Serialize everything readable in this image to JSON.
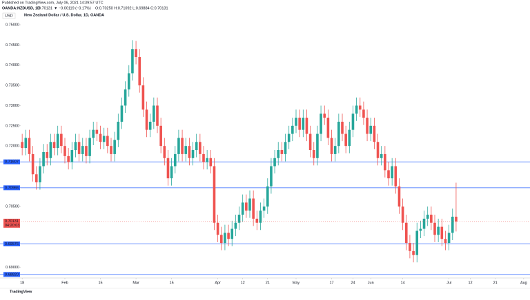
{
  "header": {
    "published": "Published on TradingView.com, July 06, 2021 14:39:57 UTC",
    "symbol": "OANDA:NZDUSD, 1D",
    "last": "0.70131",
    "change": "▼ −0.00119 (−0.17%)",
    "ohlc": "O:0.70250 H:0.71092 L:0.69884 C:0.70131",
    "currency": "USD",
    "footer": "TradingView"
  },
  "chart_data": {
    "type": "candlestick",
    "title": "New Zealand Dollar / U.S. Dollar, 1D, OANDA",
    "up_color": "#26a69a",
    "down_color": "#ef5350",
    "candles": [
      [
        0.721,
        0.723,
        0.7177,
        0.7195
      ],
      [
        0.7195,
        0.724,
        0.7177,
        0.722
      ],
      [
        0.722,
        0.724,
        0.7162,
        0.718
      ],
      [
        0.718,
        0.72,
        0.7112,
        0.713
      ],
      [
        0.713,
        0.715,
        0.7092,
        0.711
      ],
      [
        0.711,
        0.717,
        0.7092,
        0.715
      ],
      [
        0.715,
        0.7205,
        0.7132,
        0.7185
      ],
      [
        0.7185,
        0.7205,
        0.7152,
        0.717
      ],
      [
        0.717,
        0.723,
        0.7152,
        0.721
      ],
      [
        0.721,
        0.723,
        0.7177,
        0.7195
      ],
      [
        0.7195,
        0.725,
        0.7177,
        0.723
      ],
      [
        0.723,
        0.725,
        0.7182,
        0.72
      ],
      [
        0.72,
        0.722,
        0.7157,
        0.7175
      ],
      [
        0.7175,
        0.7195,
        0.7142,
        0.716
      ],
      [
        0.716,
        0.721,
        0.7142,
        0.719
      ],
      [
        0.719,
        0.723,
        0.7172,
        0.721
      ],
      [
        0.721,
        0.723,
        0.7162,
        0.718
      ],
      [
        0.718,
        0.722,
        0.7162,
        0.72
      ],
      [
        0.72,
        0.722,
        0.7157,
        0.7175
      ],
      [
        0.7175,
        0.724,
        0.7157,
        0.722
      ],
      [
        0.722,
        0.726,
        0.7202,
        0.724
      ],
      [
        0.724,
        0.726,
        0.7212,
        0.723
      ],
      [
        0.723,
        0.725,
        0.7192,
        0.721
      ],
      [
        0.721,
        0.7245,
        0.7192,
        0.7225
      ],
      [
        0.7225,
        0.7245,
        0.7182,
        0.72
      ],
      [
        0.72,
        0.722,
        0.7162,
        0.718
      ],
      [
        0.718,
        0.7235,
        0.7162,
        0.7215
      ],
      [
        0.7215,
        0.728,
        0.7197,
        0.726
      ],
      [
        0.726,
        0.732,
        0.7242,
        0.73
      ],
      [
        0.73,
        0.736,
        0.7282,
        0.734
      ],
      [
        0.734,
        0.74,
        0.7322,
        0.738
      ],
      [
        0.738,
        0.7462,
        0.7362,
        0.744
      ],
      [
        0.744,
        0.746,
        0.7402,
        0.742
      ],
      [
        0.742,
        0.744,
        0.7332,
        0.735
      ],
      [
        0.735,
        0.737,
        0.7272,
        0.729
      ],
      [
        0.729,
        0.731,
        0.7222,
        0.724
      ],
      [
        0.724,
        0.728,
        0.7222,
        0.726
      ],
      [
        0.726,
        0.732,
        0.7242,
        0.73
      ],
      [
        0.73,
        0.732,
        0.7232,
        0.725
      ],
      [
        0.725,
        0.727,
        0.7182,
        0.72
      ],
      [
        0.72,
        0.722,
        0.7152,
        0.717
      ],
      [
        0.717,
        0.719,
        0.7102,
        0.712
      ],
      [
        0.712,
        0.717,
        0.7102,
        0.715
      ],
      [
        0.715,
        0.72,
        0.7132,
        0.718
      ],
      [
        0.718,
        0.724,
        0.7162,
        0.722
      ],
      [
        0.722,
        0.724,
        0.7162,
        0.718
      ],
      [
        0.718,
        0.722,
        0.7162,
        0.72
      ],
      [
        0.72,
        0.722,
        0.7152,
        0.717
      ],
      [
        0.717,
        0.721,
        0.7152,
        0.719
      ],
      [
        0.719,
        0.723,
        0.7172,
        0.721
      ],
      [
        0.721,
        0.723,
        0.7162,
        0.718
      ],
      [
        0.718,
        0.72,
        0.7142,
        0.716
      ],
      [
        0.716,
        0.719,
        0.7142,
        0.717
      ],
      [
        0.717,
        0.719,
        0.7132,
        0.715
      ],
      [
        0.715,
        0.717,
        0.6992,
        0.701
      ],
      [
        0.701,
        0.703,
        0.6962,
        0.698
      ],
      [
        0.698,
        0.7,
        0.6942,
        0.696
      ],
      [
        0.696,
        0.7005,
        0.6942,
        0.6985
      ],
      [
        0.6985,
        0.7005,
        0.6952,
        0.697
      ],
      [
        0.697,
        0.7015,
        0.6952,
        0.6995
      ],
      [
        0.6995,
        0.703,
        0.6977,
        0.701
      ],
      [
        0.701,
        0.705,
        0.6992,
        0.703
      ],
      [
        0.703,
        0.708,
        0.7012,
        0.706
      ],
      [
        0.706,
        0.708,
        0.7022,
        0.704
      ],
      [
        0.704,
        0.709,
        0.7022,
        0.707
      ],
      [
        0.707,
        0.709,
        0.7002,
        0.702
      ],
      [
        0.702,
        0.704,
        0.6992,
        0.701
      ],
      [
        0.701,
        0.706,
        0.6992,
        0.704
      ],
      [
        0.704,
        0.707,
        0.7022,
        0.705
      ],
      [
        0.705,
        0.712,
        0.7032,
        0.71
      ],
      [
        0.71,
        0.717,
        0.7082,
        0.715
      ],
      [
        0.715,
        0.719,
        0.7132,
        0.717
      ],
      [
        0.717,
        0.721,
        0.7152,
        0.719
      ],
      [
        0.719,
        0.721,
        0.7162,
        0.718
      ],
      [
        0.718,
        0.723,
        0.7162,
        0.721
      ],
      [
        0.721,
        0.725,
        0.7192,
        0.723
      ],
      [
        0.723,
        0.727,
        0.7212,
        0.725
      ],
      [
        0.725,
        0.729,
        0.7232,
        0.727
      ],
      [
        0.727,
        0.729,
        0.7222,
        0.724
      ],
      [
        0.724,
        0.729,
        0.7222,
        0.727
      ],
      [
        0.727,
        0.729,
        0.7212,
        0.723
      ],
      [
        0.723,
        0.725,
        0.7172,
        0.719
      ],
      [
        0.719,
        0.721,
        0.7152,
        0.717
      ],
      [
        0.717,
        0.725,
        0.7152,
        0.723
      ],
      [
        0.723,
        0.73,
        0.7212,
        0.728
      ],
      [
        0.728,
        0.73,
        0.7252,
        0.727
      ],
      [
        0.727,
        0.729,
        0.7202,
        0.722
      ],
      [
        0.722,
        0.724,
        0.7162,
        0.718
      ],
      [
        0.718,
        0.722,
        0.7162,
        0.72
      ],
      [
        0.72,
        0.728,
        0.7182,
        0.726
      ],
      [
        0.726,
        0.728,
        0.7212,
        0.723
      ],
      [
        0.723,
        0.725,
        0.7182,
        0.72
      ],
      [
        0.72,
        0.726,
        0.7182,
        0.724
      ],
      [
        0.724,
        0.73,
        0.7222,
        0.728
      ],
      [
        0.728,
        0.732,
        0.7262,
        0.73
      ],
      [
        0.73,
        0.732,
        0.7272,
        0.729
      ],
      [
        0.729,
        0.731,
        0.7252,
        0.727
      ],
      [
        0.727,
        0.729,
        0.7212,
        0.723
      ],
      [
        0.723,
        0.727,
        0.7212,
        0.725
      ],
      [
        0.725,
        0.727,
        0.7192,
        0.721
      ],
      [
        0.721,
        0.723,
        0.7152,
        0.717
      ],
      [
        0.717,
        0.72,
        0.7152,
        0.718
      ],
      [
        0.718,
        0.72,
        0.7122,
        0.714
      ],
      [
        0.714,
        0.716,
        0.7102,
        0.712
      ],
      [
        0.712,
        0.717,
        0.7102,
        0.715
      ],
      [
        0.715,
        0.717,
        0.7082,
        0.71
      ],
      [
        0.71,
        0.712,
        0.7032,
        0.705
      ],
      [
        0.705,
        0.707,
        0.6992,
        0.701
      ],
      [
        0.701,
        0.703,
        0.6942,
        0.696
      ],
      [
        0.696,
        0.698,
        0.6922,
        0.694
      ],
      [
        0.694,
        0.696,
        0.6912,
        0.693
      ],
      [
        0.693,
        0.701,
        0.6912,
        0.699
      ],
      [
        0.699,
        0.7015,
        0.6972,
        0.6995
      ],
      [
        0.6995,
        0.704,
        0.6977,
        0.702
      ],
      [
        0.702,
        0.705,
        0.7002,
        0.703
      ],
      [
        0.703,
        0.705,
        0.6992,
        0.701
      ],
      [
        0.701,
        0.703,
        0.6962,
        0.698
      ],
      [
        0.698,
        0.702,
        0.6962,
        0.7
      ],
      [
        0.7,
        0.702,
        0.6952,
        0.697
      ],
      [
        0.697,
        0.699,
        0.6942,
        0.696
      ],
      [
        0.696,
        0.7005,
        0.6942,
        0.6985
      ],
      [
        0.6985,
        0.7045,
        0.6967,
        0.7025
      ],
      [
        0.7025,
        0.71092,
        0.69884,
        0.70131
      ]
    ],
    "xlim": [
      -1,
      142
    ],
    "xticks": [
      {
        "value": 0,
        "label": "18"
      },
      {
        "value": 12,
        "label": "Feb"
      },
      {
        "value": 22,
        "label": "15"
      },
      {
        "value": 32,
        "label": "Mar"
      },
      {
        "value": 42,
        "label": "15"
      },
      {
        "value": 55,
        "label": "Apr"
      },
      {
        "value": 62,
        "label": "12"
      },
      {
        "value": 69,
        "label": "21"
      },
      {
        "value": 77,
        "label": "May"
      },
      {
        "value": 87,
        "label": "17"
      },
      {
        "value": 93,
        "label": "24"
      },
      {
        "value": 98,
        "label": "Jun"
      },
      {
        "value": 107,
        "label": "14"
      },
      {
        "value": 120,
        "label": "Jul"
      },
      {
        "value": 126,
        "label": "12"
      },
      {
        "value": 133,
        "label": "21"
      },
      {
        "value": 141,
        "label": "Aug"
      }
    ],
    "ylim": [
      0.6875,
      0.75
    ],
    "yticks": [
      {
        "value": 0.75,
        "label": "0.75000"
      },
      {
        "value": 0.745,
        "label": "0.74500"
      },
      {
        "value": 0.74,
        "label": "0.74000"
      },
      {
        "value": 0.735,
        "label": "0.73500"
      },
      {
        "value": 0.73,
        "label": "0.73000"
      },
      {
        "value": 0.725,
        "label": "0.72500"
      },
      {
        "value": 0.72,
        "label": "0.72000"
      },
      {
        "value": 0.705,
        "label": "0.70500"
      },
      {
        "value": 0.69,
        "label": "0.69000"
      }
    ],
    "levels": [
      {
        "value": 0.71607,
        "label": "0.71607"
      },
      {
        "value": 0.70966,
        "label": "0.70966"
      },
      {
        "value": 0.69576,
        "label": "0.69576"
      },
      {
        "value": 0.6882,
        "label": "0.68820"
      }
    ],
    "level_color": "#2962ff",
    "price_line": {
      "value": 0.70131,
      "label": "0.70131",
      "countdown": "04:20:03"
    }
  }
}
